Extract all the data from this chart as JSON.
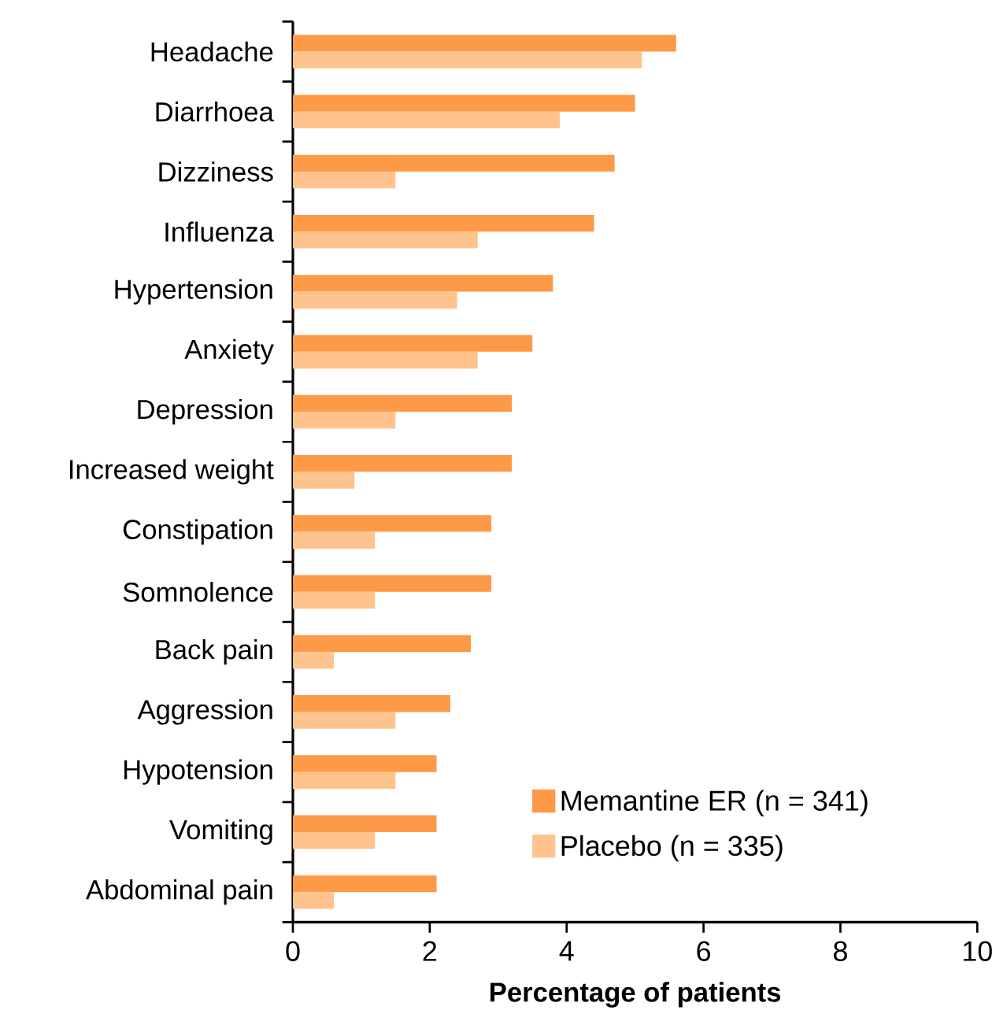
{
  "chart_data": {
    "type": "bar",
    "orientation": "horizontal",
    "xlabel": "Percentage of patients",
    "categories": [
      "Headache",
      "Diarrhoea",
      "Dizziness",
      "Influenza",
      "Hypertension",
      "Anxiety",
      "Depression",
      "Increased weight",
      "Constipation",
      "Somnolence",
      "Back pain",
      "Aggression",
      "Hypotension",
      "Vomiting",
      "Abdominal pain"
    ],
    "series": [
      {
        "name": "Memantine ER (n = 341)",
        "color": "#fd9a47",
        "values": [
          5.6,
          5.0,
          4.7,
          4.4,
          3.8,
          3.5,
          3.2,
          3.2,
          2.9,
          2.9,
          2.6,
          2.3,
          2.1,
          2.1,
          2.1
        ]
      },
      {
        "name": "Placebo (n = 335)",
        "color": "#ffc48e",
        "values": [
          5.1,
          3.9,
          1.5,
          2.7,
          2.4,
          2.7,
          1.5,
          0.9,
          1.2,
          1.2,
          0.6,
          1.5,
          1.5,
          1.2,
          0.6
        ]
      }
    ],
    "xlim": [
      0,
      10
    ],
    "xticks": [
      0,
      2,
      4,
      6,
      8,
      10
    ],
    "grid": false,
    "legend": "bottom right"
  }
}
